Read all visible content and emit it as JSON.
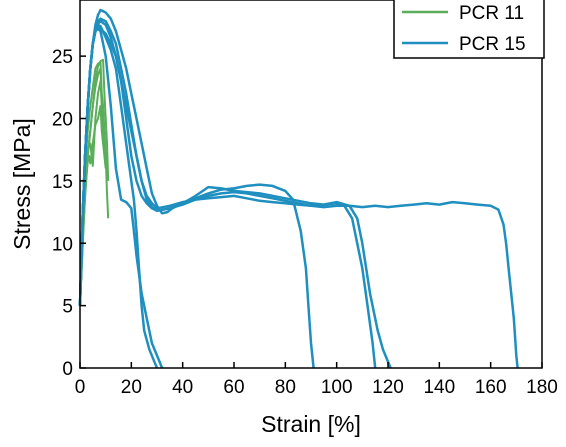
{
  "chart_data": {
    "type": "line",
    "xlabel": "Strain [%]",
    "ylabel": "Stress [MPa]",
    "xlim": [
      0,
      180
    ],
    "ylim": [
      0,
      29.5
    ],
    "xticks": [
      "0",
      "20",
      "40",
      "60",
      "80",
      "100",
      "120",
      "140",
      "160",
      "180"
    ],
    "yticks": [
      "0",
      "5",
      "10",
      "15",
      "20",
      "25"
    ],
    "legend_position": "top-right",
    "grid": false,
    "series": [
      {
        "name": "PCR 11",
        "color": "#5aad5a",
        "curves": [
          [
            [
              0,
              5
            ],
            [
              1,
              11
            ],
            [
              2,
              16
            ],
            [
              3,
              19
            ],
            [
              4,
              21
            ],
            [
              5,
              22.5
            ],
            [
              6,
              24
            ],
            [
              7,
              24.4
            ],
            [
              8,
              24.5
            ],
            [
              8.5,
              22
            ],
            [
              9,
              21
            ],
            [
              9.5,
              19
            ],
            [
              10,
              17
            ],
            [
              10.5,
              14
            ],
            [
              11,
              12
            ]
          ],
          [
            [
              0,
              5
            ],
            [
              1.5,
              12
            ],
            [
              3,
              17
            ],
            [
              4,
              19
            ],
            [
              5,
              21
            ],
            [
              6,
              23
            ],
            [
              7,
              24.2
            ],
            [
              8,
              24.6
            ],
            [
              9,
              24.7
            ],
            [
              9.5,
              22
            ],
            [
              10,
              20
            ],
            [
              10.5,
              18
            ],
            [
              11,
              15
            ]
          ],
          [
            [
              0,
              5
            ],
            [
              2,
              14
            ],
            [
              3,
              16.5
            ],
            [
              3.5,
              17
            ],
            [
              4,
              16.4
            ],
            [
              5,
              18
            ],
            [
              6,
              19.5
            ],
            [
              7,
              20
            ],
            [
              8,
              21
            ],
            [
              8.5,
              19
            ],
            [
              9,
              18
            ],
            [
              9.5,
              17
            ],
            [
              10,
              16
            ]
          ],
          [
            [
              0,
              5
            ],
            [
              2,
              15
            ],
            [
              3,
              17.5
            ],
            [
              4,
              18
            ],
            [
              5,
              16.2
            ],
            [
              6,
              20
            ],
            [
              7,
              22
            ],
            [
              8,
              23
            ],
            [
              8.5,
              21
            ],
            [
              9,
              18.5
            ],
            [
              9.5,
              17.5
            ]
          ],
          [
            [
              0,
              5
            ],
            [
              1,
              10
            ],
            [
              2,
              14
            ],
            [
              3,
              17
            ],
            [
              4,
              19
            ],
            [
              5,
              21
            ],
            [
              6,
              22.5
            ],
            [
              7,
              23.5
            ],
            [
              8,
              24
            ],
            [
              8.5,
              21
            ],
            [
              9,
              18
            ]
          ]
        ]
      },
      {
        "name": "PCR 15",
        "color": "#1f8fbf",
        "curves": [
          [
            [
              0,
              5
            ],
            [
              1,
              12
            ],
            [
              2,
              17
            ],
            [
              3,
              21
            ],
            [
              4,
              24
            ],
            [
              5,
              26
            ],
            [
              6,
              27
            ],
            [
              7,
              27.5
            ],
            [
              8,
              27.4
            ],
            [
              10,
              26.5
            ],
            [
              12,
              25.5
            ],
            [
              14,
              24
            ],
            [
              16,
              21
            ],
            [
              18,
              18
            ],
            [
              20,
              15
            ],
            [
              21,
              13.5
            ],
            [
              22,
              11
            ],
            [
              23,
              8
            ],
            [
              24,
              5
            ],
            [
              25,
              3
            ],
            [
              27,
              1.5
            ],
            [
              29,
              0.5
            ],
            [
              30,
              0
            ]
          ],
          [
            [
              0,
              5
            ],
            [
              1,
              12
            ],
            [
              2,
              17
            ],
            [
              3,
              21
            ],
            [
              4,
              24
            ],
            [
              5,
              26
            ],
            [
              6,
              27.5
            ],
            [
              7,
              28.3
            ],
            [
              8,
              28.7
            ],
            [
              10,
              28.5
            ],
            [
              12,
              28
            ],
            [
              14,
              27
            ],
            [
              16,
              25.5
            ],
            [
              18,
              24
            ],
            [
              20,
              22
            ],
            [
              22,
              20
            ],
            [
              24,
              18
            ],
            [
              26,
              16
            ],
            [
              28,
              14
            ],
            [
              30,
              13
            ],
            [
              32,
              12.4
            ],
            [
              34,
              12.5
            ],
            [
              36,
              12.8
            ],
            [
              40,
              13.2
            ],
            [
              45,
              13.6
            ],
            [
              50,
              14
            ],
            [
              55,
              14.3
            ],
            [
              60,
              14.4
            ],
            [
              65,
              14.6
            ],
            [
              70,
              14.7
            ],
            [
              75,
              14.6
            ],
            [
              80,
              14.2
            ],
            [
              83,
              13.5
            ],
            [
              86,
              11
            ],
            [
              88,
              8
            ],
            [
              89,
              5
            ],
            [
              90,
              2
            ],
            [
              91,
              0
            ]
          ],
          [
            [
              0,
              5
            ],
            [
              1,
              12
            ],
            [
              2,
              17
            ],
            [
              3,
              21
            ],
            [
              4,
              24
            ],
            [
              5,
              26
            ],
            [
              6,
              27
            ],
            [
              7,
              27.6
            ],
            [
              8,
              27.8
            ],
            [
              10,
              27.5
            ],
            [
              12,
              26.5
            ],
            [
              14,
              25
            ],
            [
              16,
              23
            ],
            [
              18,
              21
            ],
            [
              20,
              19
            ],
            [
              22,
              17
            ],
            [
              24,
              15
            ],
            [
              26,
              13.5
            ],
            [
              28,
              12.9
            ],
            [
              30,
              12.6
            ],
            [
              35,
              12.8
            ],
            [
              40,
              13.1
            ],
            [
              45,
              13.5
            ],
            [
              50,
              13.8
            ],
            [
              55,
              14
            ],
            [
              60,
              14.1
            ],
            [
              65,
              14
            ],
            [
              70,
              13.8
            ],
            [
              75,
              13.6
            ],
            [
              80,
              13.4
            ],
            [
              85,
              13.2
            ],
            [
              90,
              13
            ],
            [
              95,
              13.1
            ],
            [
              100,
              13.2
            ],
            [
              103,
              13
            ],
            [
              106,
              12
            ],
            [
              108,
              10
            ],
            [
              110,
              8
            ],
            [
              112,
              5
            ],
            [
              114,
              2
            ],
            [
              115,
              0
            ]
          ],
          [
            [
              0,
              5
            ],
            [
              1,
              12
            ],
            [
              2,
              17
            ],
            [
              3,
              21
            ],
            [
              4,
              24
            ],
            [
              5,
              26
            ],
            [
              6,
              27
            ],
            [
              7,
              27.2
            ],
            [
              8,
              27
            ],
            [
              10,
              25
            ],
            [
              12,
              21
            ],
            [
              14,
              16
            ],
            [
              16,
              13.5
            ],
            [
              18,
              13.3
            ],
            [
              20,
              12.8
            ],
            [
              21,
              11
            ],
            [
              22,
              9
            ],
            [
              24,
              6
            ],
            [
              26,
              4
            ],
            [
              28,
              2
            ],
            [
              30,
              1
            ],
            [
              32,
              0
            ]
          ],
          [
            [
              0,
              5
            ],
            [
              1,
              12
            ],
            [
              2,
              17
            ],
            [
              3,
              21
            ],
            [
              4,
              24
            ],
            [
              5,
              26
            ],
            [
              6,
              27
            ],
            [
              7,
              27.4
            ],
            [
              8,
              27.2
            ],
            [
              10,
              26.8
            ],
            [
              12,
              26
            ],
            [
              14,
              25
            ],
            [
              16,
              23
            ],
            [
              18,
              20
            ],
            [
              20,
              17
            ],
            [
              22,
              15
            ],
            [
              24,
              13.8
            ],
            [
              26,
              13.2
            ],
            [
              28,
              12.8
            ],
            [
              30,
              12.6
            ],
            [
              35,
              12.8
            ],
            [
              40,
              13.2
            ],
            [
              45,
              13.8
            ],
            [
              50,
              14.5
            ],
            [
              55,
              14.4
            ],
            [
              60,
              14.2
            ],
            [
              65,
              14.1
            ],
            [
              70,
              14
            ],
            [
              75,
              13.8
            ],
            [
              80,
              13.6
            ],
            [
              85,
              13.4
            ],
            [
              90,
              13.2
            ],
            [
              95,
              13.1
            ],
            [
              100,
              13.3
            ],
            [
              105,
              13
            ],
            [
              108,
              12
            ],
            [
              110,
              10
            ],
            [
              113,
              6
            ],
            [
              116,
              3
            ],
            [
              118,
              1.5
            ],
            [
              121,
              0
            ]
          ],
          [
            [
              0,
              5
            ],
            [
              1,
              12
            ],
            [
              2,
              17
            ],
            [
              3,
              21
            ],
            [
              4,
              24
            ],
            [
              5,
              26
            ],
            [
              6,
              27.2
            ],
            [
              7,
              27.8
            ],
            [
              8,
              28
            ],
            [
              10,
              27.8
            ],
            [
              12,
              27
            ],
            [
              14,
              26
            ],
            [
              16,
              24
            ],
            [
              18,
              22
            ],
            [
              20,
              19.5
            ],
            [
              22,
              17
            ],
            [
              24,
              15
            ],
            [
              26,
              13.8
            ],
            [
              28,
              13.2
            ],
            [
              30,
              12.8
            ],
            [
              35,
              13
            ],
            [
              40,
              13.3
            ],
            [
              45,
              13.5
            ],
            [
              50,
              13.6
            ],
            [
              55,
              13.7
            ],
            [
              60,
              13.8
            ],
            [
              65,
              13.6
            ],
            [
              70,
              13.4
            ],
            [
              75,
              13.3
            ],
            [
              80,
              13.2
            ],
            [
              85,
              13.1
            ],
            [
              90,
              13
            ],
            [
              95,
              12.9
            ],
            [
              100,
              13
            ],
            [
              105,
              13
            ],
            [
              110,
              12.9
            ],
            [
              115,
              13
            ],
            [
              120,
              12.9
            ],
            [
              125,
              13
            ],
            [
              130,
              13.1
            ],
            [
              135,
              13.2
            ],
            [
              140,
              13.1
            ],
            [
              145,
              13.3
            ],
            [
              150,
              13.2
            ],
            [
              155,
              13.1
            ],
            [
              160,
              13
            ],
            [
              163,
              12.7
            ],
            [
              165,
              11.5
            ],
            [
              166,
              10
            ],
            [
              167,
              8
            ],
            [
              168,
              6
            ],
            [
              169,
              4
            ],
            [
              170,
              1
            ],
            [
              170.5,
              0
            ]
          ]
        ]
      }
    ]
  }
}
